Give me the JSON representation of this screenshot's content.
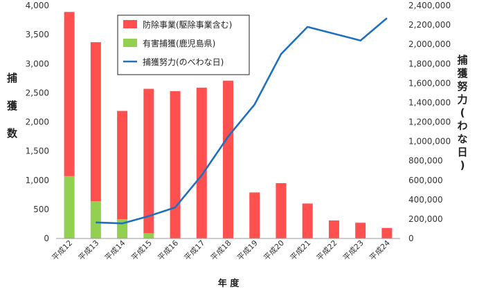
{
  "chart_data": {
    "type": "bar",
    "categories": [
      "平成12",
      "平成13",
      "平成14",
      "平成15",
      "平成16",
      "平成17",
      "平成18",
      "平成19",
      "平成20",
      "平成21",
      "平成22",
      "平成23",
      "平成24"
    ],
    "series": [
      {
        "name": "防除事業(駆除事業含む)",
        "kind": "bar",
        "axis": "left",
        "color": "#ff5050",
        "values": [
          2820,
          2730,
          1860,
          2480,
          2530,
          2590,
          2710,
          790,
          950,
          600,
          310,
          270,
          180
        ]
      },
      {
        "name": "有害捕獲(鹿児島県)",
        "kind": "bar",
        "axis": "left",
        "color": "#92d050",
        "values": [
          1070,
          640,
          330,
          90,
          0,
          0,
          0,
          0,
          0,
          0,
          0,
          0,
          0
        ]
      },
      {
        "name": "捕獲努力(のべわな日)",
        "kind": "line",
        "axis": "right",
        "color": "#1f6fbf",
        "values": [
          null,
          165000,
          155000,
          230000,
          320000,
          650000,
          1050000,
          1380000,
          1900000,
          2180000,
          2110000,
          2040000,
          2270000
        ]
      }
    ],
    "stacked": true,
    "ylabel": "捕獲数",
    "y2label": "捕獲努力(わな日)",
    "xlabel": "年 度",
    "ylim": [
      0,
      4000
    ],
    "y2lim": [
      0,
      2400000
    ],
    "yticks": [
      "0",
      "500",
      "1,000",
      "1,500",
      "2,000",
      "2,500",
      "3,000",
      "3,500",
      "4,000"
    ],
    "y2ticks": [
      "0",
      "200,000",
      "400,000",
      "600,000",
      "800,000",
      "1,000,000",
      "1,200,000",
      "1,400,000",
      "1,600,000",
      "1,800,000",
      "2,000,000",
      "2,200,000",
      "2,400,000"
    ],
    "legend_position": "top-left",
    "grid": false
  }
}
